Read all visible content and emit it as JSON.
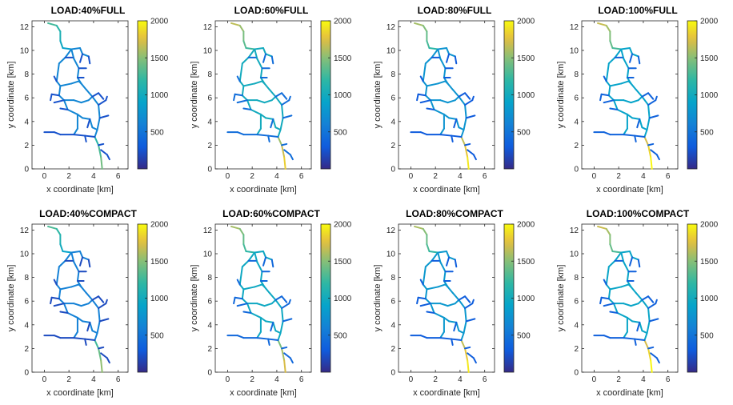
{
  "figure": {
    "colorbar": {
      "min": 0,
      "max": 2000,
      "ticks": [
        500,
        1000,
        1500,
        2000
      ],
      "colormap": "parula"
    },
    "axes": {
      "xlabel": "x coordinate [km]",
      "ylabel": "y coordinate [km]",
      "xlim": [
        -1,
        6.8
      ],
      "ylim": [
        0,
        12.5
      ],
      "xticks": [
        0,
        2,
        4,
        6
      ],
      "yticks": [
        0,
        2,
        4,
        6,
        8,
        10,
        12
      ]
    }
  },
  "chart_data": [
    {
      "type": "line",
      "title": "LOAD:40%FULL",
      "feeder_level": 0.7,
      "branch_level": 0.32,
      "lateral_level": 0.12
    },
    {
      "type": "line",
      "title": "LOAD:60%FULL",
      "feeder_level": 0.9,
      "branch_level": 0.5,
      "lateral_level": 0.22
    },
    {
      "type": "line",
      "title": "LOAD:80%FULL",
      "feeder_level": 0.95,
      "branch_level": 0.38,
      "lateral_level": 0.15
    },
    {
      "type": "line",
      "title": "LOAD:100%FULL",
      "feeder_level": 0.98,
      "branch_level": 0.45,
      "lateral_level": 0.18
    },
    {
      "type": "line",
      "title": "LOAD:40%COMPACT",
      "feeder_level": 0.75,
      "branch_level": 0.3,
      "lateral_level": 0.1
    },
    {
      "type": "line",
      "title": "LOAD:60%COMPACT",
      "feeder_level": 0.85,
      "branch_level": 0.48,
      "lateral_level": 0.2
    },
    {
      "type": "line",
      "title": "LOAD:80%COMPACT",
      "feeder_level": 0.95,
      "branch_level": 0.4,
      "lateral_level": 0.16
    },
    {
      "type": "line",
      "title": "LOAD:100%COMPACT",
      "feeder_level": 0.98,
      "branch_level": 0.46,
      "lateral_level": 0.17
    }
  ]
}
